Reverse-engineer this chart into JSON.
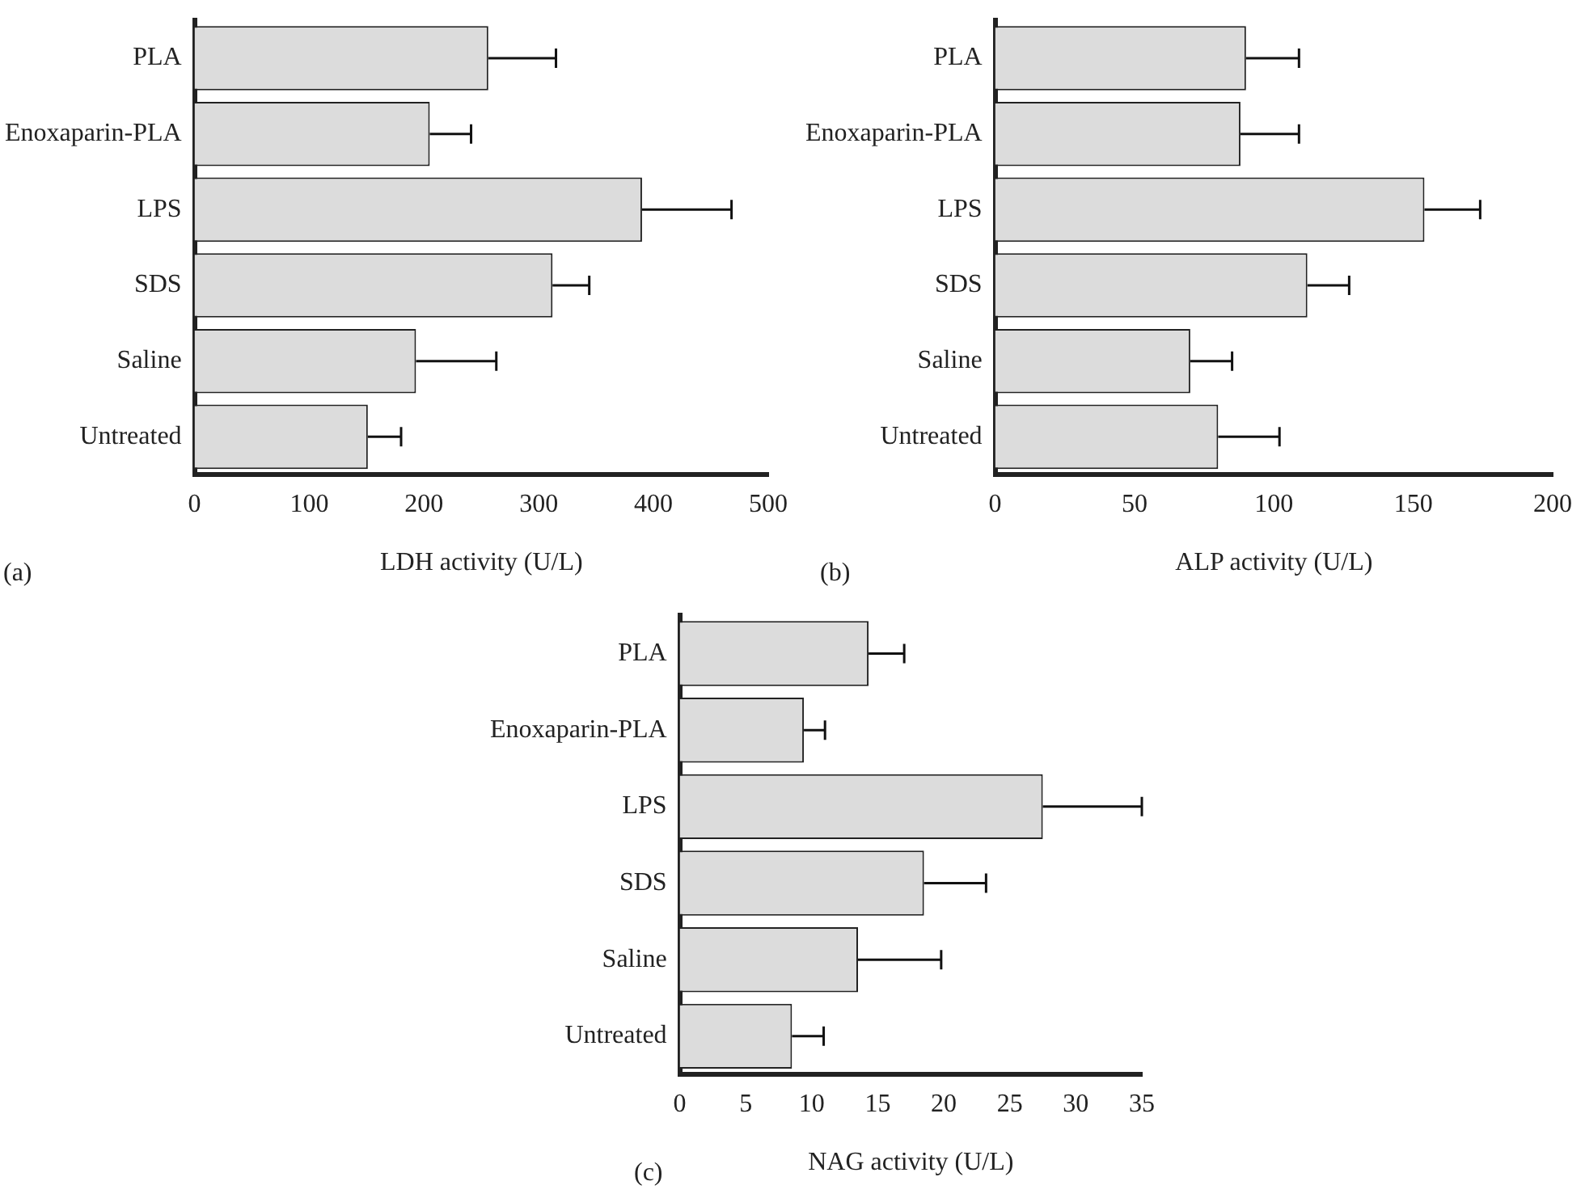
{
  "chart_data": [
    {
      "type": "bar",
      "orientation": "horizontal",
      "categories": [
        "PLA",
        "Enoxaparin-PLA",
        "LPS",
        "SDS",
        "Saline",
        "Untreated"
      ],
      "values": [
        256,
        205,
        390,
        312,
        193,
        151
      ],
      "errors": [
        [
          256,
          315
        ],
        [
          205,
          241
        ],
        [
          390,
          468
        ],
        [
          312,
          344
        ],
        [
          193,
          263
        ],
        [
          151,
          180
        ]
      ],
      "color": "#dcdcdc",
      "xlim": [
        0,
        500
      ],
      "xticks": [
        0,
        100,
        200,
        300,
        400,
        500
      ],
      "xlabel": "LDH activity (U/L)",
      "annotations": [
        "(a)"
      ],
      "grid": false,
      "legend": false
    },
    {
      "type": "bar",
      "orientation": "horizontal",
      "categories": [
        "PLA",
        "Enoxaparin-PLA",
        "LPS",
        "SDS",
        "Saline",
        "Untreated"
      ],
      "values": [
        90,
        88,
        154,
        112,
        70,
        80
      ],
      "errors": [
        [
          90,
          109
        ],
        [
          88,
          109
        ],
        [
          154,
          174
        ],
        [
          112,
          127
        ],
        [
          70,
          85
        ],
        [
          80,
          102
        ]
      ],
      "color": "#dcdcdc",
      "xlim": [
        0,
        200
      ],
      "xticks": [
        0,
        50,
        100,
        150,
        200
      ],
      "xlabel": "ALP activity (U/L)",
      "annotations": [
        "(b)"
      ],
      "grid": false,
      "legend": false
    },
    {
      "type": "bar",
      "orientation": "horizontal",
      "categories": [
        "PLA",
        "Enoxaparin-PLA",
        "LPS",
        "SDS",
        "Saline",
        "Untreated"
      ],
      "values": [
        14.3,
        9.4,
        27.5,
        18.5,
        13.5,
        8.5
      ],
      "errors": [
        [
          14.3,
          17
        ],
        [
          9.4,
          11
        ],
        [
          27.5,
          35
        ],
        [
          18.5,
          23.2
        ],
        [
          13.5,
          19.8
        ],
        [
          8.5,
          10.9
        ]
      ],
      "color": "#dcdcdc",
      "xlim": [
        0,
        35
      ],
      "xticks": [
        0,
        5,
        10,
        15,
        20,
        25,
        30,
        35
      ],
      "xlabel": "NAG activity (U/L)",
      "annotations": [
        "(c)"
      ],
      "grid": false,
      "legend": false
    }
  ]
}
